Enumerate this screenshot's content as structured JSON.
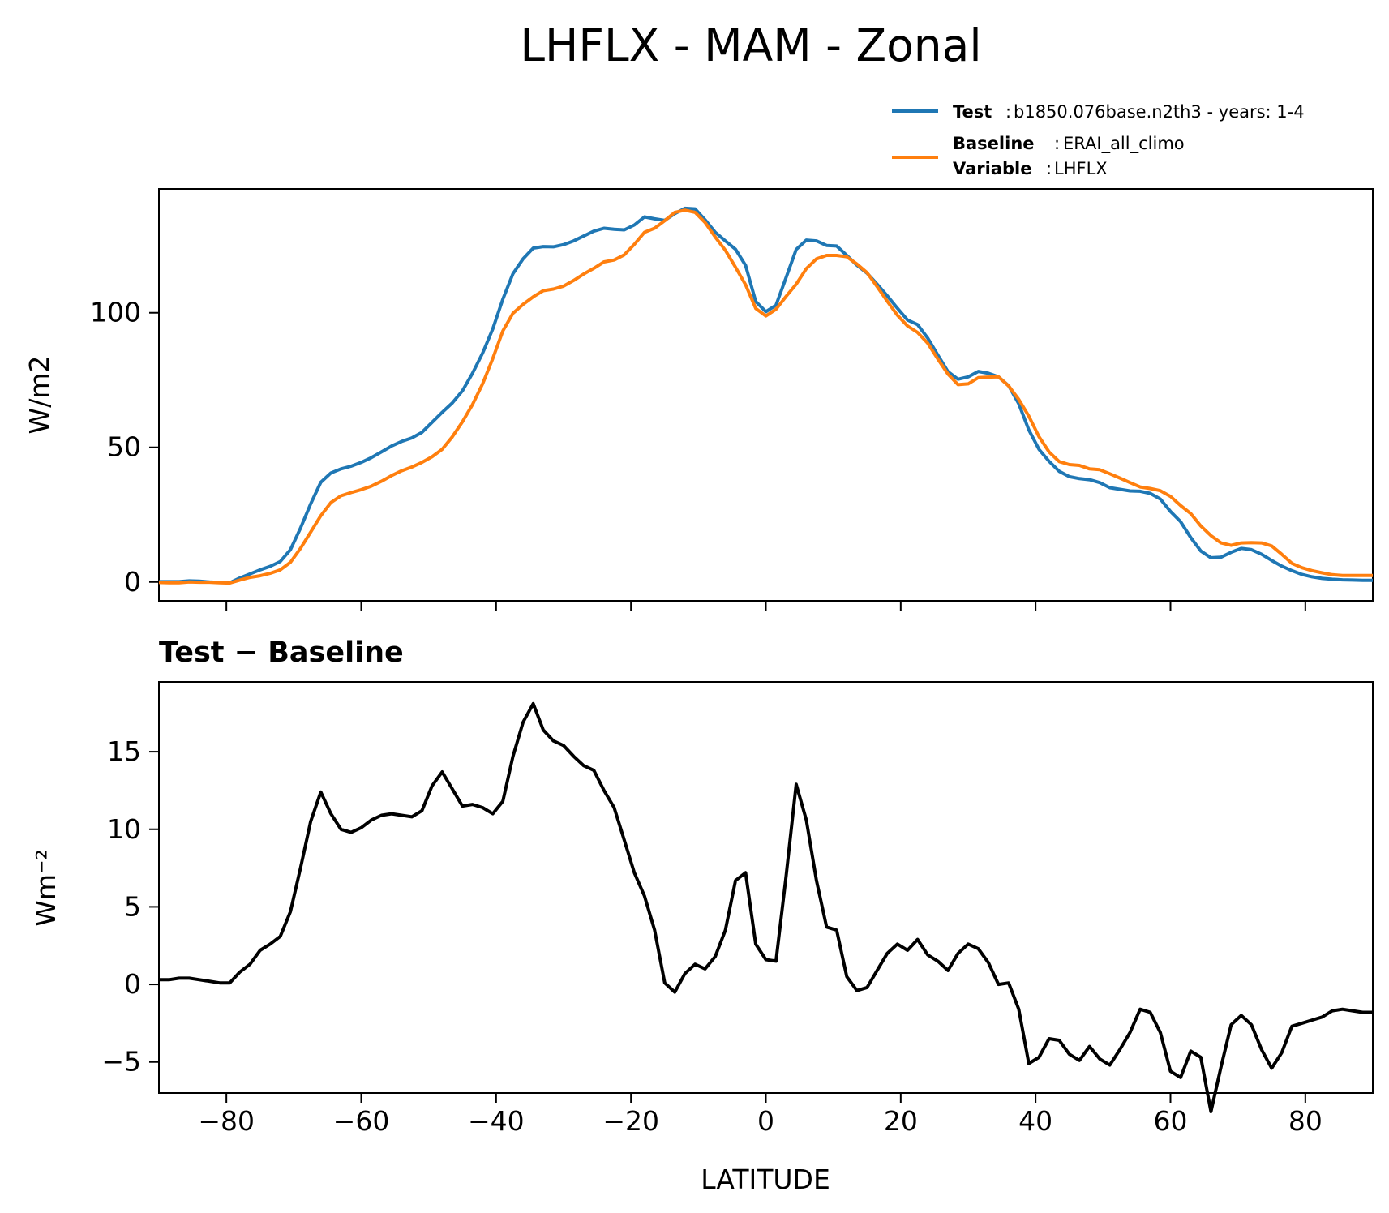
{
  "chart_data": [
    {
      "type": "line",
      "title": "LHFLX - MAM - Zonal",
      "xlabel": "",
      "ylabel": "W/m2",
      "xlim": [
        -90,
        90
      ],
      "ylim": [
        -7,
        146
      ],
      "yticks": [
        0,
        50,
        100
      ],
      "xticks": [
        -80,
        -60,
        -40,
        -20,
        0,
        20,
        40,
        60,
        80
      ],
      "show_xticklabels": false,
      "grid": false,
      "legend": {
        "placement": "above-right",
        "entries": [
          {
            "key": "Test",
            "text": "b1850.076base.n2th3 - years: 1-4",
            "color": "#1f77b4"
          },
          {
            "key": "Baseline",
            "text": "ERAI_all_climo",
            "color": "#ff7f0e",
            "extra_key": "Variable",
            "extra_text": "LHFLX"
          }
        ]
      },
      "x": [
        -90,
        -88.5,
        -87,
        -85.5,
        -84,
        -82.5,
        -81,
        -79.5,
        -78,
        -76.5,
        -75,
        -73.5,
        -72,
        -70.5,
        -69,
        -67.5,
        -66,
        -64.5,
        -63,
        -61.5,
        -60,
        -58.5,
        -57,
        -55.5,
        -54,
        -52.5,
        -51,
        -49.5,
        -48,
        -46.5,
        -45,
        -43.5,
        -42,
        -40.5,
        -39,
        -37.5,
        -36,
        -34.5,
        -33,
        -31.5,
        -30,
        -28.5,
        -27,
        -25.5,
        -24,
        -22.5,
        -21,
        -19.5,
        -18,
        -16.5,
        -15,
        -13.5,
        -12,
        -10.5,
        -9,
        -7.5,
        -6,
        -4.5,
        -3,
        -1.5,
        0,
        1.5,
        3,
        4.5,
        6,
        7.5,
        9,
        10.5,
        12,
        13.5,
        15,
        16.5,
        18,
        19.5,
        21,
        22.5,
        24,
        25.5,
        27,
        28.5,
        30,
        31.5,
        33,
        34.5,
        36,
        37.5,
        39,
        40.5,
        42,
        43.5,
        45,
        46.5,
        48,
        49.5,
        51,
        52.5,
        54,
        55.5,
        57,
        58.5,
        60,
        61.5,
        63,
        64.5,
        66,
        67.5,
        69,
        70.5,
        72,
        73.5,
        75,
        76.5,
        78,
        79.5,
        81,
        82.5,
        84,
        85.5,
        87,
        88.5,
        90
      ],
      "series": [
        {
          "name": "Test",
          "color": "#1f77b4",
          "values": [
            0.1,
            0.1,
            0.1,
            0.4,
            0.3,
            0.0,
            -0.2,
            -0.3,
            1.5,
            3.0,
            4.5,
            5.8,
            7.6,
            12.0,
            20.0,
            29.0,
            37.0,
            40.5,
            42.0,
            43.0,
            44.4,
            46.2,
            48.3,
            50.5,
            52.2,
            53.5,
            55.6,
            59.3,
            63.0,
            66.5,
            71.0,
            77.5,
            85.0,
            94.0,
            105.0,
            114.5,
            120.0,
            124.0,
            124.6,
            124.5,
            125.3,
            126.7,
            128.5,
            130.3,
            131.4,
            131.0,
            130.8,
            132.6,
            135.6,
            134.9,
            134.3,
            136.8,
            138.8,
            138.6,
            134.5,
            129.9,
            126.7,
            123.6,
            117.6,
            104.2,
            100.4,
            102.8,
            113.1,
            123.5,
            127.0,
            126.7,
            125.0,
            124.8,
            121.3,
            117.7,
            114.7,
            110.6,
            106.3,
            101.7,
            97.3,
            95.6,
            90.6,
            84.3,
            78.1,
            75.3,
            76.2,
            78.2,
            77.5,
            76.2,
            72.9,
            66.2,
            56.5,
            49.3,
            44.8,
            41.1,
            39.1,
            38.4,
            38.0,
            36.9,
            35.0,
            34.4,
            33.8,
            33.7,
            32.9,
            30.8,
            26.2,
            22.4,
            16.5,
            11.5,
            9.0,
            9.2,
            11.0,
            12.5,
            12.0,
            10.3,
            8.0,
            5.9,
            4.2,
            2.8,
            1.9,
            1.3,
            1.0,
            0.8,
            0.7,
            0.6,
            0.6
          ]
        },
        {
          "name": "Baseline",
          "color": "#ff7f0e",
          "values": [
            -0.2,
            -0.3,
            -0.3,
            0.0,
            -0.1,
            -0.1,
            -0.3,
            -0.4,
            0.7,
            1.7,
            2.3,
            3.2,
            4.5,
            7.3,
            12.5,
            18.5,
            24.6,
            29.5,
            32.0,
            33.2,
            34.3,
            35.6,
            37.4,
            39.5,
            41.3,
            42.7,
            44.4,
            46.5,
            49.3,
            53.9,
            59.5,
            65.9,
            73.6,
            83.0,
            93.2,
            99.8,
            103.1,
            105.9,
            108.2,
            108.8,
            109.9,
            112.0,
            114.4,
            116.5,
            118.9,
            119.6,
            121.5,
            125.4,
            129.9,
            131.4,
            134.2,
            137.3,
            138.1,
            137.3,
            133.5,
            128.1,
            123.2,
            116.9,
            110.4,
            101.6,
            98.8,
            101.3,
            106.1,
            110.6,
            116.4,
            120.0,
            121.3,
            121.3,
            120.8,
            118.1,
            114.9,
            109.7,
            104.3,
            99.1,
            95.1,
            92.7,
            88.7,
            82.8,
            77.2,
            73.3,
            73.6,
            75.9,
            76.1,
            76.2,
            72.8,
            67.8,
            61.6,
            54.0,
            48.3,
            44.7,
            43.6,
            43.3,
            42.0,
            41.7,
            40.2,
            38.6,
            36.9,
            35.3,
            34.7,
            33.9,
            31.8,
            28.4,
            25.4,
            20.8,
            17.2,
            14.5,
            13.6,
            14.5,
            14.6,
            14.5,
            13.4,
            10.3,
            6.9,
            5.3,
            4.2,
            3.4,
            2.7,
            2.4,
            2.4,
            2.4,
            2.4
          ]
        }
      ]
    },
    {
      "type": "line",
      "title": "Test − Baseline",
      "xlabel": "LATITUDE",
      "ylabel": "Wm⁻²",
      "xlim": [
        -90,
        90
      ],
      "ylim": [
        -7,
        19.5
      ],
      "yticks": [
        -5,
        0,
        5,
        10,
        15
      ],
      "ytick_labels": [
        "−5",
        "0",
        "5",
        "10",
        "15"
      ],
      "xticks": [
        -80,
        -60,
        -40,
        -20,
        0,
        20,
        40,
        60,
        80
      ],
      "xtick_labels": [
        "−80",
        "−60",
        "−40",
        "−20",
        "0",
        "20",
        "40",
        "60",
        "80"
      ],
      "grid": false,
      "x": [
        -90,
        -88.5,
        -87,
        -85.5,
        -84,
        -82.5,
        -81,
        -79.5,
        -78,
        -76.5,
        -75,
        -73.5,
        -72,
        -70.5,
        -69,
        -67.5,
        -66,
        -64.5,
        -63,
        -61.5,
        -60,
        -58.5,
        -57,
        -55.5,
        -54,
        -52.5,
        -51,
        -49.5,
        -48,
        -46.5,
        -45,
        -43.5,
        -42,
        -40.5,
        -39,
        -37.5,
        -36,
        -34.5,
        -33,
        -31.5,
        -30,
        -28.5,
        -27,
        -25.5,
        -24,
        -22.5,
        -21,
        -19.5,
        -18,
        -16.5,
        -15,
        -13.5,
        -12,
        -10.5,
        -9,
        -7.5,
        -6,
        -4.5,
        -3,
        -1.5,
        0,
        1.5,
        3,
        4.5,
        6,
        7.5,
        9,
        10.5,
        12,
        13.5,
        15,
        16.5,
        18,
        19.5,
        21,
        22.5,
        24,
        25.5,
        27,
        28.5,
        30,
        31.5,
        33,
        34.5,
        36,
        37.5,
        39,
        40.5,
        42,
        43.5,
        45,
        46.5,
        48,
        49.5,
        51,
        52.5,
        54,
        55.5,
        57,
        58.5,
        60,
        61.5,
        63,
        64.5,
        66,
        67.5,
        69,
        70.5,
        72,
        73.5,
        75,
        76.5,
        78,
        79.5,
        81,
        82.5,
        84,
        85.5,
        87,
        88.5,
        90
      ],
      "series": [
        {
          "color": "#000000",
          "values": [
            0.3,
            0.3,
            0.4,
            0.4,
            0.3,
            0.2,
            0.1,
            0.1,
            0.8,
            1.3,
            2.2,
            2.6,
            3.1,
            4.7,
            7.5,
            10.5,
            12.4,
            11.0,
            10.0,
            9.8,
            10.1,
            10.6,
            10.9,
            11.0,
            10.9,
            10.8,
            11.2,
            12.8,
            13.7,
            12.6,
            11.5,
            11.6,
            11.4,
            11.0,
            11.8,
            14.7,
            16.9,
            18.1,
            16.4,
            15.7,
            15.4,
            14.7,
            14.1,
            13.8,
            12.5,
            11.4,
            9.3,
            7.2,
            5.7,
            3.5,
            0.1,
            -0.5,
            0.7,
            1.3,
            1.0,
            1.8,
            3.5,
            6.7,
            7.2,
            2.6,
            1.6,
            1.5,
            7.0,
            12.9,
            10.6,
            6.7,
            3.7,
            3.5,
            0.5,
            -0.4,
            -0.2,
            0.9,
            2.0,
            2.6,
            2.2,
            2.9,
            1.9,
            1.5,
            0.9,
            2.0,
            2.6,
            2.3,
            1.4,
            0.0,
            0.1,
            -1.6,
            -5.1,
            -4.7,
            -3.5,
            -3.6,
            -4.5,
            -4.9,
            -4.0,
            -4.8,
            -5.2,
            -4.2,
            -3.1,
            -1.6,
            -1.8,
            -3.1,
            -5.6,
            -6.0,
            -4.3,
            -4.7,
            -8.2,
            -5.3,
            -2.6,
            -2.0,
            -2.6,
            -4.2,
            -5.4,
            -4.4,
            -2.7,
            -2.5,
            -2.3,
            -2.1,
            -1.7,
            -1.6,
            -1.7,
            -1.8,
            -1.8
          ]
        }
      ]
    }
  ]
}
